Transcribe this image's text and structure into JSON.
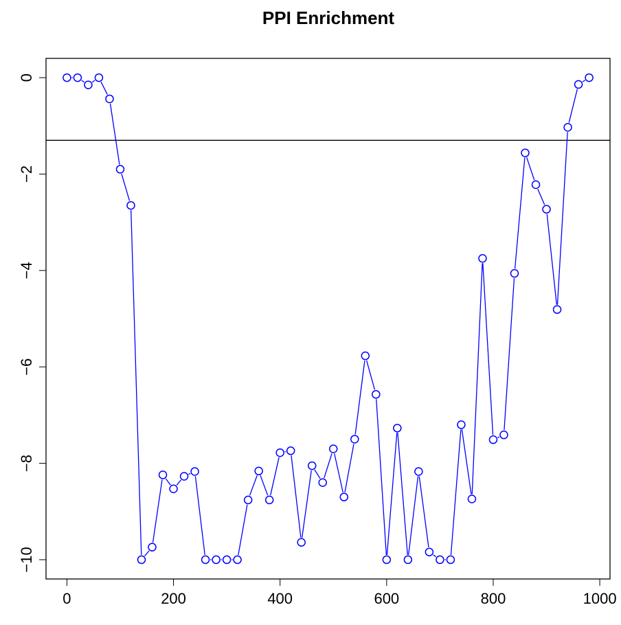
{
  "chart_data": {
    "type": "line",
    "title": "PPI Enrichment",
    "x": [
      0,
      20,
      40,
      60,
      80,
      100,
      120,
      140,
      160,
      180,
      200,
      220,
      240,
      260,
      280,
      300,
      320,
      340,
      360,
      380,
      400,
      420,
      440,
      460,
      480,
      500,
      520,
      540,
      560,
      580,
      600,
      620,
      640,
      660,
      680,
      700,
      720,
      740,
      760,
      780,
      800,
      820,
      840,
      860,
      880,
      900,
      920,
      940,
      960,
      980
    ],
    "series": [
      {
        "color": "#0000ff",
        "values": [
          0,
          0,
          -0.15,
          0,
          -0.44,
          -1.9,
          -2.65,
          -10,
          -9.74,
          -8.24,
          -8.53,
          -8.27,
          -8.17,
          -10,
          -10,
          -10,
          -10,
          -8.76,
          -8.16,
          -8.76,
          -7.78,
          -7.74,
          -9.64,
          -8.05,
          -8.4,
          -7.7,
          -8.7,
          -7.5,
          -5.77,
          -6.57,
          -10,
          -7.27,
          -10,
          -8.17,
          -9.84,
          -10,
          -10,
          -7.2,
          -8.74,
          -3.75,
          -7.51,
          -7.41,
          -4.06,
          -1.56,
          -2.22,
          -2.73,
          -4.81,
          -1.03,
          -0.14,
          0
        ]
      }
    ],
    "hline": -1.3,
    "xlim": [
      -39.2,
      1019.2
    ],
    "ylim": [
      -10.4,
      0.4
    ],
    "xticks": [
      0,
      200,
      400,
      600,
      800,
      1000
    ],
    "yticks": [
      0,
      {
        "value": -2,
        "label": "−2"
      },
      {
        "value": -4,
        "label": "−4"
      },
      {
        "value": -6,
        "label": "−6"
      },
      {
        "value": -8,
        "label": "−8"
      },
      {
        "value": -10,
        "label": "−10"
      }
    ]
  }
}
